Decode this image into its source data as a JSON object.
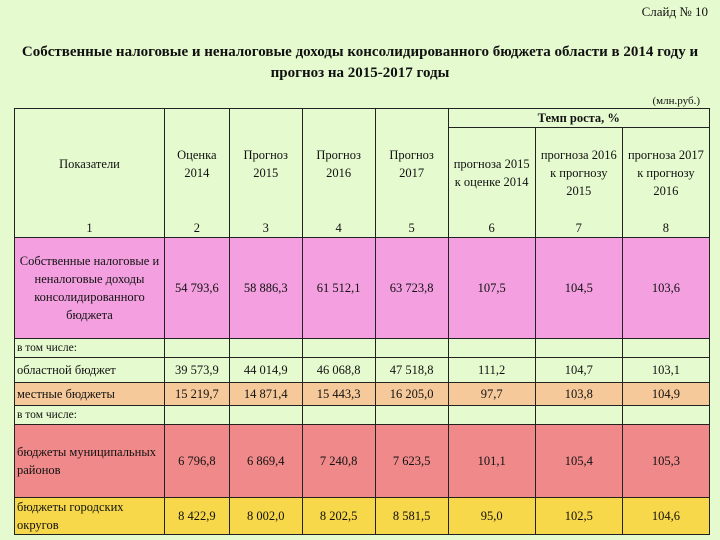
{
  "slide_number": "Слайд № 10",
  "title_line1": "Собственные налоговые и неналоговые доходы консолидированного бюджета области в 2014 году и",
  "title_line2": "прогноз на 2015-2017 годы",
  "units": "(млн.руб.)",
  "table": {
    "col_indicator": "Показатели",
    "col_estimate_2014": "Оценка 2014",
    "col_forecast_2015": "Прогноз 2015",
    "col_forecast_2016": "Прогноз 2016",
    "col_forecast_2017": "Прогноз 2017",
    "growth_group": "Темп роста, %",
    "col_g6": "прогноза 2015 к оценке 2014",
    "col_g7": "прогноза 2016 к прогнозу 2015",
    "col_g8": "прогноза 2017 к прогнозу 2016",
    "index": [
      "1",
      "2",
      "3",
      "4",
      "5",
      "6",
      "7",
      "8"
    ],
    "rows": [
      {
        "label": "Собственные налоговые и неналоговые доходы консолидированного бюджета",
        "values": [
          "54 793,6",
          "58 886,3",
          "61 512,1",
          "63 723,8",
          "107,5",
          "104,5",
          "103,6"
        ]
      },
      {
        "label": "в том числе:",
        "values": []
      },
      {
        "label": "областной бюджет",
        "values": [
          "39 573,9",
          "44 014,9",
          "46 068,8",
          "47 518,8",
          "111,2",
          "104,7",
          "103,1"
        ]
      },
      {
        "label": "местные бюджеты",
        "values": [
          "15 219,7",
          "14 871,4",
          "15 443,3",
          "16 205,0",
          "97,7",
          "103,8",
          "104,9"
        ]
      },
      {
        "label": "в том числе:",
        "values": []
      },
      {
        "label": "бюджеты муниципальных районов",
        "values": [
          "6 796,8",
          "6 869,4",
          "7 240,8",
          "7 623,5",
          "101,1",
          "105,4",
          "105,3"
        ]
      },
      {
        "label": "бюджеты городских округов",
        "values": [
          "8 422,9",
          "8 002,0",
          "8 202,5",
          "8 581,5",
          "95,0",
          "102,5",
          "104,6"
        ]
      }
    ]
  },
  "colors": {
    "background": "#e6fad0",
    "total_row": "#f4a0e0",
    "local_row": "#f6c99a",
    "districts_row": "#f08a8a",
    "cities_row": "#f7d84a"
  }
}
